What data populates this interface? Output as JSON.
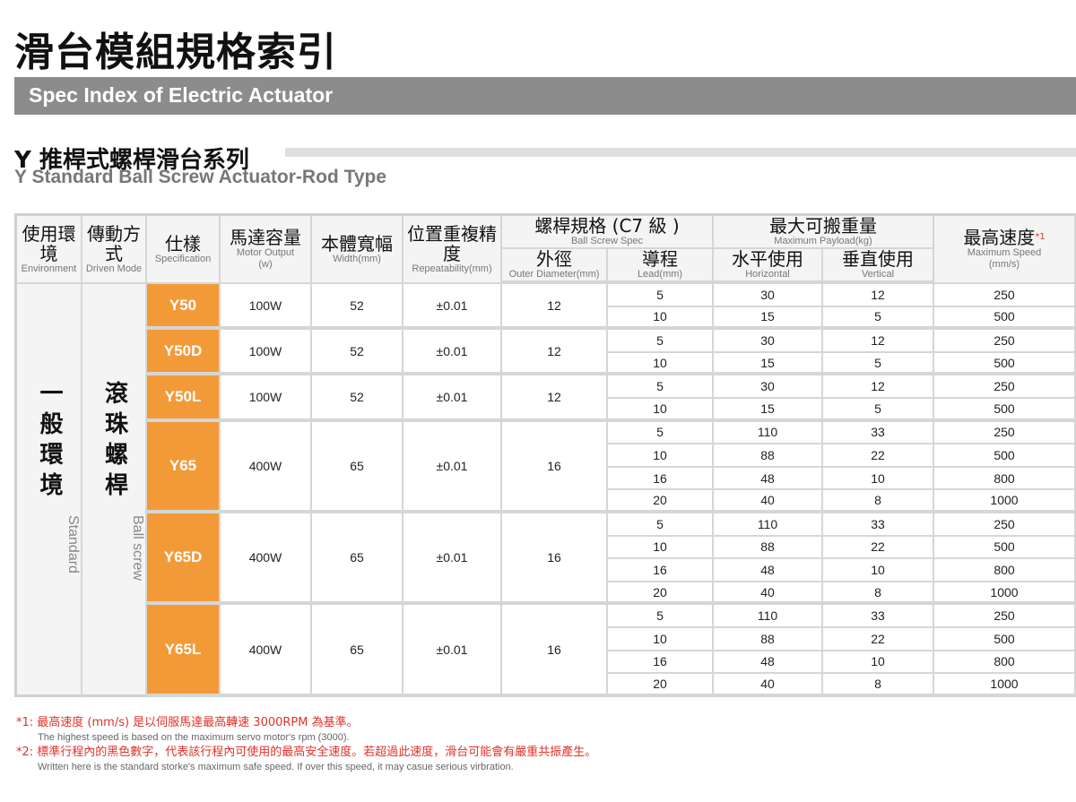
{
  "page": {
    "title": "滑台模組規格索引",
    "banner": "Spec Index of Electric Actuator",
    "series_title": "Y 推桿式螺桿滑台系列",
    "series_subtitle": "Y Standard Ball Screw Actuator-Rod Type"
  },
  "colors": {
    "accent": "#f39a38",
    "banner": "#8c8c8c",
    "note": "#e0312a"
  },
  "headers": {
    "environment": {
      "zh": "使用環境",
      "en": "Environment"
    },
    "driven": {
      "zh": "傳動方式",
      "en": "Driven Mode"
    },
    "spec": {
      "zh": "仕樣",
      "en": "Specification"
    },
    "motor": {
      "zh": "馬達容量",
      "en": "Motor Output",
      "unit": "(w)"
    },
    "width": {
      "zh": "本體寬幅",
      "en": "Width(mm)"
    },
    "repeat": {
      "zh": "位置重複精度",
      "en": "Repeatability(mm)"
    },
    "screw": {
      "zh": "螺桿規格 (C7 級 )",
      "en": "Ball Screw Spec"
    },
    "outer": {
      "zh": "外徑",
      "en": "Outer Diameter(mm)"
    },
    "lead": {
      "zh": "導程",
      "en": "Lead(mm)"
    },
    "payload": {
      "zh": "最大可搬重量",
      "en": "Maximum Payload(kg)"
    },
    "horizontal": {
      "zh": "水平使用",
      "en": "Horizontal"
    },
    "vertical": {
      "zh": "垂直使用",
      "en": "Vertical"
    },
    "speed": {
      "zh": "最高速度",
      "mark": "*1",
      "en": "Maximum Speed",
      "unit": "(mm/s)"
    }
  },
  "side_labels": {
    "environment": {
      "zh": "一般環境",
      "en": "Standard"
    },
    "driven": {
      "zh": "滾珠螺桿",
      "en": "Ball screw"
    }
  },
  "models": [
    {
      "name": "Y50",
      "motor": "100W",
      "width": "52",
      "repeat": "±0.01",
      "outer": "12",
      "rows": [
        {
          "lead": "5",
          "h": "30",
          "v": "12",
          "speed": "250"
        },
        {
          "lead": "10",
          "h": "15",
          "v": "5",
          "speed": "500"
        }
      ]
    },
    {
      "name": "Y50D",
      "motor": "100W",
      "width": "52",
      "repeat": "±0.01",
      "outer": "12",
      "rows": [
        {
          "lead": "5",
          "h": "30",
          "v": "12",
          "speed": "250"
        },
        {
          "lead": "10",
          "h": "15",
          "v": "5",
          "speed": "500"
        }
      ]
    },
    {
      "name": "Y50L",
      "motor": "100W",
      "width": "52",
      "repeat": "±0.01",
      "outer": "12",
      "rows": [
        {
          "lead": "5",
          "h": "30",
          "v": "12",
          "speed": "250"
        },
        {
          "lead": "10",
          "h": "15",
          "v": "5",
          "speed": "500"
        }
      ]
    },
    {
      "name": "Y65",
      "motor": "400W",
      "width": "65",
      "repeat": "±0.01",
      "outer": "16",
      "rows": [
        {
          "lead": "5",
          "h": "110",
          "v": "33",
          "speed": "250"
        },
        {
          "lead": "10",
          "h": "88",
          "v": "22",
          "speed": "500"
        },
        {
          "lead": "16",
          "h": "48",
          "v": "10",
          "speed": "800"
        },
        {
          "lead": "20",
          "h": "40",
          "v": "8",
          "speed": "1000"
        }
      ]
    },
    {
      "name": "Y65D",
      "motor": "400W",
      "width": "65",
      "repeat": "±0.01",
      "outer": "16",
      "rows": [
        {
          "lead": "5",
          "h": "110",
          "v": "33",
          "speed": "250"
        },
        {
          "lead": "10",
          "h": "88",
          "v": "22",
          "speed": "500"
        },
        {
          "lead": "16",
          "h": "48",
          "v": "10",
          "speed": "800"
        },
        {
          "lead": "20",
          "h": "40",
          "v": "8",
          "speed": "1000"
        }
      ]
    },
    {
      "name": "Y65L",
      "motor": "400W",
      "width": "65",
      "repeat": "±0.01",
      "outer": "16",
      "rows": [
        {
          "lead": "5",
          "h": "110",
          "v": "33",
          "speed": "250"
        },
        {
          "lead": "10",
          "h": "88",
          "v": "22",
          "speed": "500"
        },
        {
          "lead": "16",
          "h": "48",
          "v": "10",
          "speed": "800"
        },
        {
          "lead": "20",
          "h": "40",
          "v": "8",
          "speed": "1000"
        }
      ]
    }
  ],
  "footnotes": [
    {
      "main": "*1: 最高速度 (mm/s) 是以伺服馬達最高轉速 3000RPM 為基準。",
      "en": "The highest speed is based on the maximum servo motor's rpm (3000)."
    },
    {
      "main": "*2: 標準行程內的黑色數字，代表該行程內可使用的最高安全速度。若超過此速度，滑台可能會有嚴重共振產生。",
      "en": "Written here is the standard storke's maximum safe speed. If over this speed, it may casue serious virbration."
    }
  ]
}
